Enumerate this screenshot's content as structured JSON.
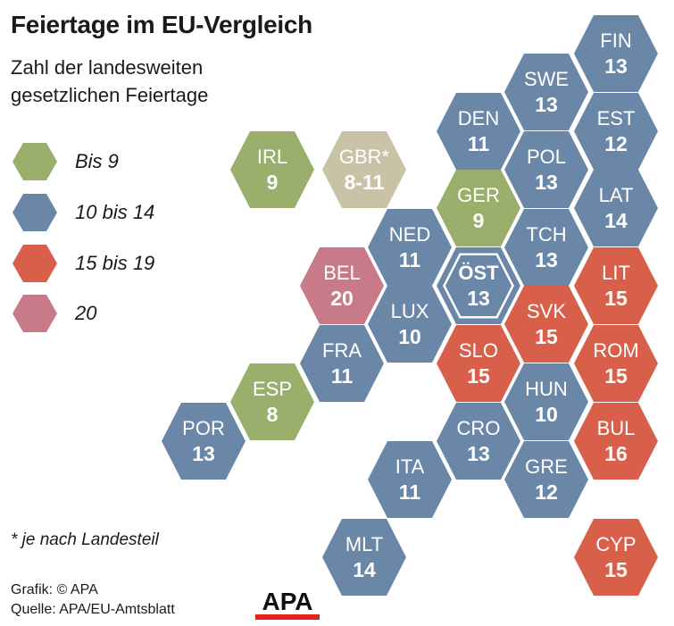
{
  "title": "Feiertage im EU-Vergleich",
  "subtitle": "Zahl der landesweiten gesetzlichen Feiertage",
  "colors": {
    "green": "#9aaf6c",
    "blue": "#6b87a8",
    "red": "#d8604a",
    "pink": "#c97a88",
    "beige": "#c9c2a6",
    "text": "#ffffff"
  },
  "legend": [
    {
      "label": "Bis 9",
      "color": "green"
    },
    {
      "label": "10 bis 14",
      "color": "blue"
    },
    {
      "label": "15 bis 19",
      "color": "red"
    },
    {
      "label": "20",
      "color": "pink"
    }
  ],
  "countries": [
    {
      "code": "FIN",
      "value": "13",
      "color": "blue"
    },
    {
      "code": "SWE",
      "value": "13",
      "color": "blue"
    },
    {
      "code": "EST",
      "value": "12",
      "color": "blue"
    },
    {
      "code": "DEN",
      "value": "11",
      "color": "blue"
    },
    {
      "code": "POL",
      "value": "13",
      "color": "blue"
    },
    {
      "code": "IRL",
      "value": "9",
      "color": "green"
    },
    {
      "code": "GBR*",
      "value": "8-11",
      "color": "beige"
    },
    {
      "code": "GER",
      "value": "9",
      "color": "green"
    },
    {
      "code": "LAT",
      "value": "14",
      "color": "blue"
    },
    {
      "code": "NED",
      "value": "11",
      "color": "blue"
    },
    {
      "code": "TCH",
      "value": "13",
      "color": "blue"
    },
    {
      "code": "BEL",
      "value": "20",
      "color": "pink"
    },
    {
      "code": "ÖST",
      "value": "13",
      "color": "blue",
      "highlight": true
    },
    {
      "code": "LIT",
      "value": "15",
      "color": "red"
    },
    {
      "code": "LUX",
      "value": "10",
      "color": "blue"
    },
    {
      "code": "SVK",
      "value": "15",
      "color": "red"
    },
    {
      "code": "FRA",
      "value": "11",
      "color": "blue"
    },
    {
      "code": "SLO",
      "value": "15",
      "color": "red"
    },
    {
      "code": "ROM",
      "value": "15",
      "color": "red"
    },
    {
      "code": "ESP",
      "value": "8",
      "color": "green"
    },
    {
      "code": "HUN",
      "value": "10",
      "color": "blue"
    },
    {
      "code": "POR",
      "value": "13",
      "color": "blue"
    },
    {
      "code": "CRO",
      "value": "13",
      "color": "blue"
    },
    {
      "code": "BUL",
      "value": "16",
      "color": "red"
    },
    {
      "code": "ITA",
      "value": "11",
      "color": "blue"
    },
    {
      "code": "GRE",
      "value": "12",
      "color": "blue"
    },
    {
      "code": "MLT",
      "value": "14",
      "color": "blue"
    },
    {
      "code": "CYP",
      "value": "15",
      "color": "red"
    }
  ],
  "footnote": "* je nach Landesteil",
  "credits": {
    "graphic": "Grafik: © APA",
    "source": "Quelle: APA/EU-Amtsblatt"
  },
  "logo": {
    "text": "APA",
    "color": "#e2231a"
  }
}
